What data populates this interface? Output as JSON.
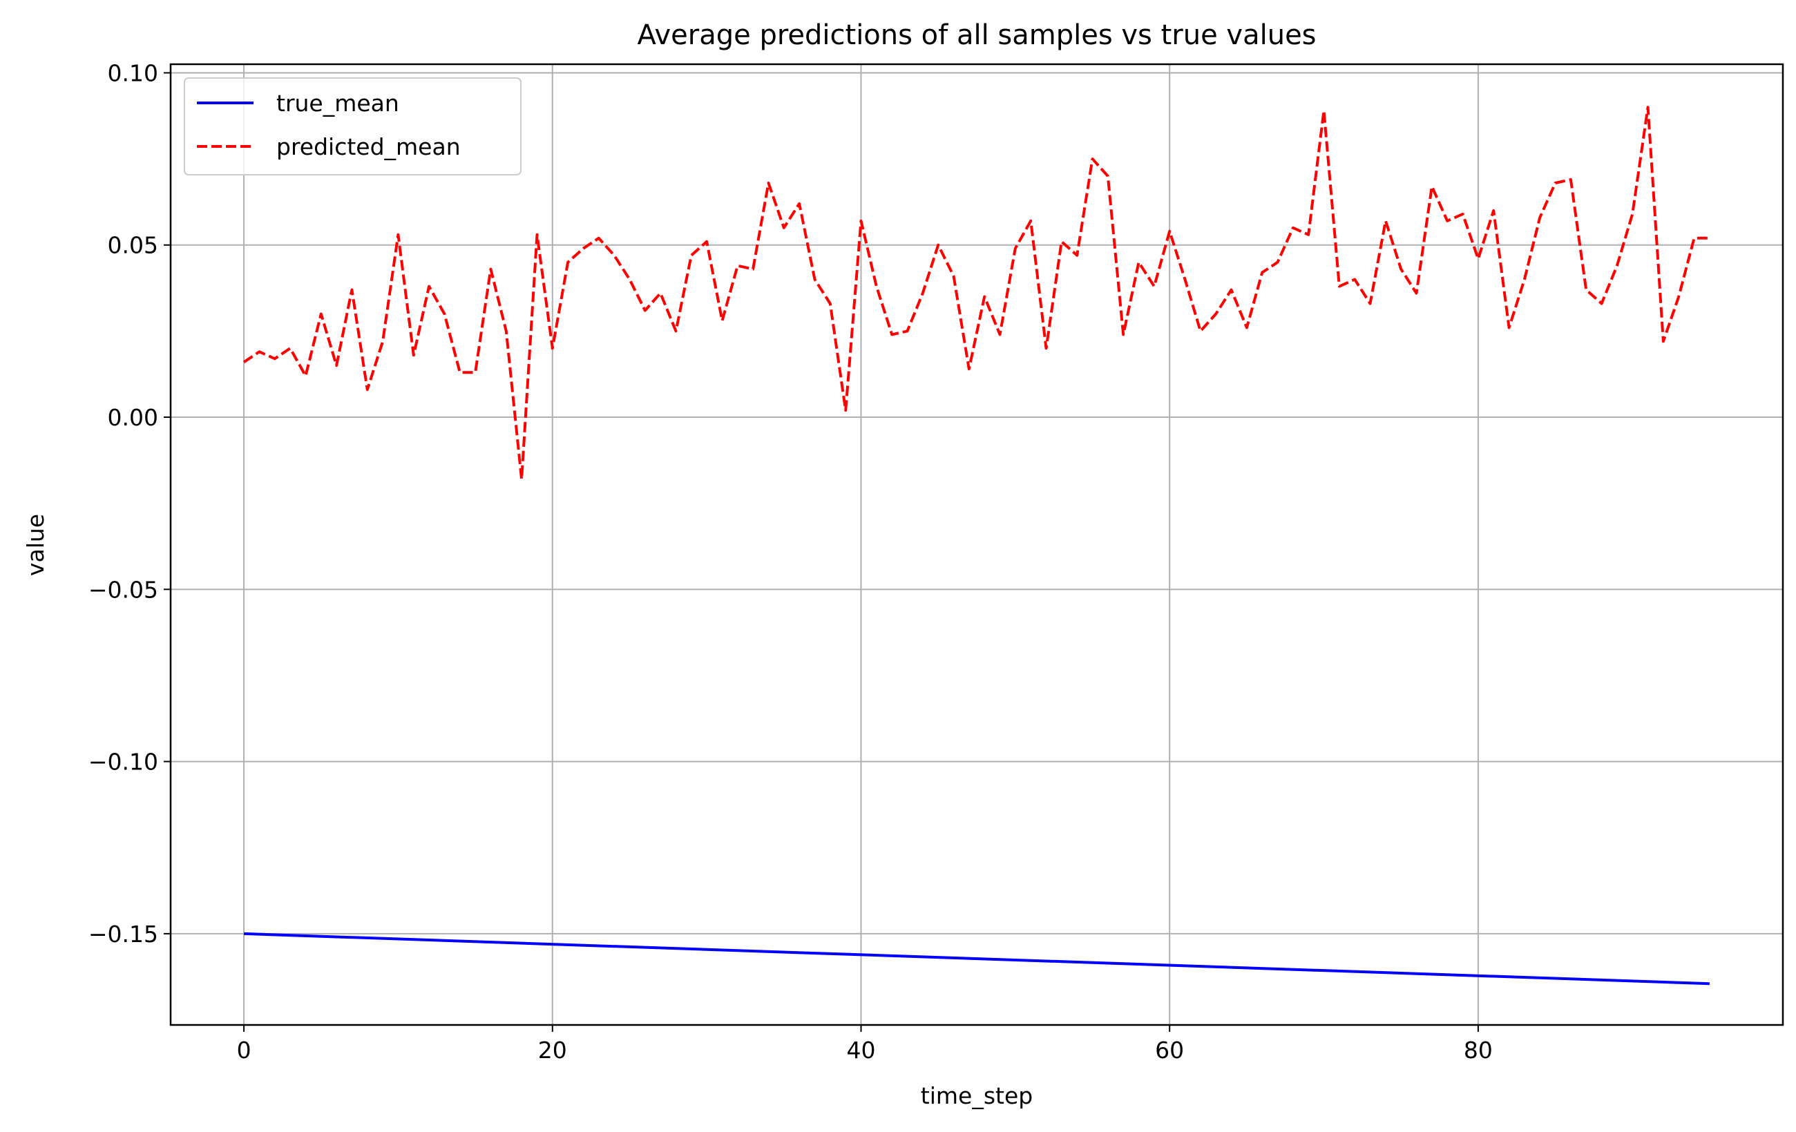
{
  "chart_data": {
    "type": "line",
    "title": "Average predictions of all samples vs true values",
    "xlabel": "time_step",
    "ylabel": "value",
    "xlim": [
      -4.75,
      99.75
    ],
    "ylim": [
      -0.1765,
      0.1025
    ],
    "xticks": [
      0,
      20,
      40,
      60,
      80
    ],
    "xtick_labels": [
      "0",
      "20",
      "40",
      "60",
      "80"
    ],
    "yticks": [
      0.1,
      0.05,
      0.0,
      -0.05,
      -0.1,
      -0.15
    ],
    "ytick_labels": [
      "0.10",
      "0.05",
      "0.00",
      "−0.05",
      "−0.10",
      "−0.15"
    ],
    "grid": true,
    "legend_position": "top-left",
    "series": [
      {
        "name": "true_mean",
        "color": "#0000ff",
        "style": "solid",
        "x": [
          0,
          95
        ],
        "values": [
          -0.15,
          -0.1645
        ]
      },
      {
        "name": "predicted_mean",
        "color": "#ff0000",
        "style": "dashed",
        "x": [
          0,
          1,
          2,
          3,
          4,
          5,
          6,
          7,
          8,
          9,
          10,
          11,
          12,
          13,
          14,
          15,
          16,
          17,
          18,
          19,
          20,
          21,
          22,
          23,
          24,
          25,
          26,
          27,
          28,
          29,
          30,
          31,
          32,
          33,
          34,
          35,
          36,
          37,
          38,
          39,
          40,
          41,
          42,
          43,
          44,
          45,
          46,
          47,
          48,
          49,
          50,
          51,
          52,
          53,
          54,
          55,
          56,
          57,
          58,
          59,
          60,
          61,
          62,
          63,
          64,
          65,
          66,
          67,
          68,
          69,
          70,
          71,
          72,
          73,
          74,
          75,
          76,
          77,
          78,
          79,
          80,
          81,
          82,
          83,
          84,
          85,
          86,
          87,
          88,
          89,
          90,
          91,
          92,
          93,
          94,
          95
        ],
        "values": [
          0.016,
          0.019,
          0.017,
          0.02,
          0.012,
          0.03,
          0.015,
          0.037,
          0.008,
          0.022,
          0.053,
          0.018,
          0.038,
          0.03,
          0.013,
          0.013,
          0.043,
          0.025,
          -0.018,
          0.053,
          0.02,
          0.045,
          0.049,
          0.052,
          0.047,
          0.04,
          0.031,
          0.036,
          0.025,
          0.047,
          0.051,
          0.028,
          0.044,
          0.043,
          0.068,
          0.055,
          0.062,
          0.04,
          0.033,
          0.002,
          0.057,
          0.038,
          0.024,
          0.025,
          0.036,
          0.05,
          0.041,
          0.014,
          0.035,
          0.024,
          0.049,
          0.057,
          0.02,
          0.051,
          0.047,
          0.075,
          0.07,
          0.024,
          0.045,
          0.038,
          0.054,
          0.04,
          0.025,
          0.03,
          0.037,
          0.026,
          0.042,
          0.045,
          0.055,
          0.053,
          0.089,
          0.038,
          0.04,
          0.033,
          0.057,
          0.043,
          0.036,
          0.067,
          0.057,
          0.059,
          0.046,
          0.06,
          0.026,
          0.04,
          0.058,
          0.068,
          0.069,
          0.037,
          0.033,
          0.044,
          0.059,
          0.09,
          0.022,
          0.035,
          0.052,
          0.052
        ]
      }
    ]
  }
}
